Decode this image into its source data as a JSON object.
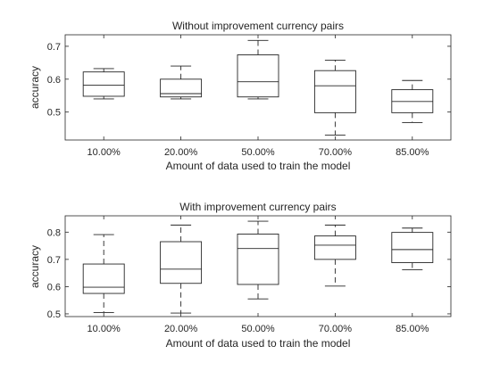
{
  "chart_data": [
    {
      "type": "box",
      "title": "Without improvement currency pairs",
      "xlabel": "Amount of data used to train the model",
      "ylabel": "accuracy",
      "categories": [
        "10.00%",
        "20.00%",
        "50.00%",
        "70.00%",
        "85.00%"
      ],
      "ylim": [
        0.415,
        0.735
      ],
      "yticks": [
        0.5,
        0.6,
        0.7
      ],
      "ytick_labels": [
        "0.5",
        "0.6",
        "0.7"
      ],
      "boxes": [
        {
          "min": 0.54,
          "q1": 0.548,
          "median": 0.582,
          "q3": 0.622,
          "max": 0.632
        },
        {
          "min": 0.54,
          "q1": 0.546,
          "median": 0.556,
          "q3": 0.6,
          "max": 0.64
        },
        {
          "min": 0.54,
          "q1": 0.546,
          "median": 0.592,
          "q3": 0.674,
          "max": 0.718
        },
        {
          "min": 0.43,
          "q1": 0.498,
          "median": 0.58,
          "q3": 0.626,
          "max": 0.658
        },
        {
          "min": 0.468,
          "q1": 0.498,
          "median": 0.532,
          "q3": 0.568,
          "max": 0.596
        }
      ]
    },
    {
      "type": "box",
      "title": "With improvement currency pairs",
      "xlabel": "Amount of data used to train the model",
      "ylabel": "accuracy",
      "categories": [
        "10.00%",
        "20.00%",
        "50.00%",
        "70.00%",
        "85.00%"
      ],
      "ylim": [
        0.49,
        0.86
      ],
      "yticks": [
        0.5,
        0.6,
        0.7,
        0.8
      ],
      "ytick_labels": [
        "0.5",
        "0.6",
        "0.7",
        "0.8"
      ],
      "boxes": [
        {
          "min": 0.505,
          "q1": 0.575,
          "median": 0.598,
          "q3": 0.683,
          "max": 0.791
        },
        {
          "min": 0.503,
          "q1": 0.612,
          "median": 0.664,
          "q3": 0.765,
          "max": 0.826
        },
        {
          "min": 0.555,
          "q1": 0.608,
          "median": 0.74,
          "q3": 0.793,
          "max": 0.84
        },
        {
          "min": 0.602,
          "q1": 0.7,
          "median": 0.752,
          "q3": 0.786,
          "max": 0.826
        },
        {
          "min": 0.662,
          "q1": 0.688,
          "median": 0.736,
          "q3": 0.799,
          "max": 0.815
        }
      ]
    }
  ]
}
